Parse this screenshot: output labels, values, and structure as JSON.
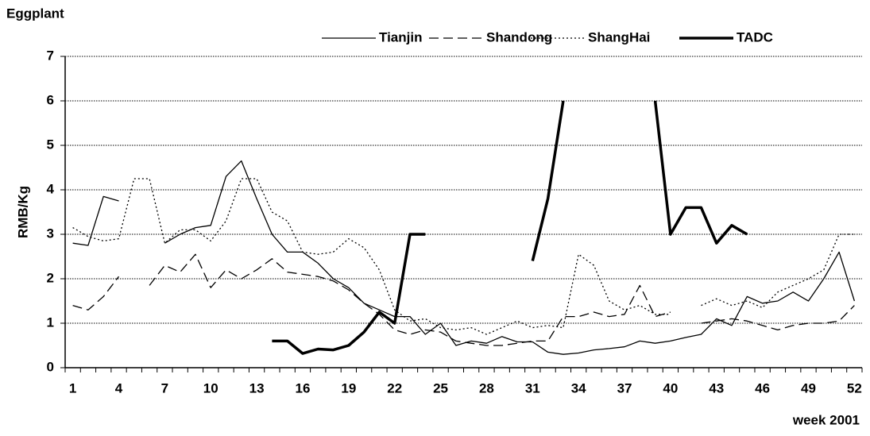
{
  "chart_data": {
    "type": "line",
    "title": "Eggplant",
    "ylabel": "RMB/Kg",
    "xlabel": "week 2001",
    "categories": [
      1,
      null,
      null,
      4,
      null,
      null,
      7,
      null,
      null,
      10,
      null,
      null,
      13,
      null,
      null,
      16,
      null,
      null,
      19,
      null,
      null,
      22,
      null,
      null,
      25,
      null,
      null,
      28,
      null,
      null,
      31,
      null,
      null,
      34,
      null,
      null,
      37,
      null,
      null,
      40,
      null,
      null,
      43,
      null,
      null,
      46,
      null,
      null,
      49,
      null,
      null,
      52
    ],
    "ylim": [
      0,
      7
    ],
    "yticks": [
      0,
      1,
      2,
      3,
      4,
      5,
      6,
      7
    ],
    "grid": true,
    "legend": "top right",
    "series": [
      {
        "name": "Tianjin",
        "color": "#000000",
        "width": 1.3,
        "dash": "none",
        "values": [
          2.8,
          2.75,
          3.85,
          3.75,
          null,
          null,
          2.8,
          3.0,
          3.15,
          3.2,
          4.3,
          4.65,
          3.8,
          3.0,
          2.6,
          2.6,
          2.35,
          2.0,
          1.8,
          1.45,
          1.3,
          1.15,
          1.15,
          0.75,
          1.0,
          0.5,
          0.6,
          0.55,
          0.7,
          0.58,
          0.58,
          0.35,
          0.3,
          0.33,
          0.4,
          0.43,
          0.47,
          0.6,
          0.55,
          0.6,
          0.68,
          0.75,
          1.1,
          0.95,
          1.6,
          1.45,
          1.5,
          1.7,
          1.5,
          2.0,
          2.6,
          1.5
        ]
      },
      {
        "name": "Shandong",
        "color": "#000000",
        "width": 1.3,
        "dash": "12 6",
        "values": [
          1.4,
          1.3,
          1.6,
          2.05,
          null,
          1.85,
          2.3,
          2.15,
          2.55,
          1.8,
          2.2,
          2.0,
          2.2,
          2.45,
          2.15,
          2.1,
          2.05,
          1.95,
          1.75,
          1.45,
          1.2,
          0.85,
          0.75,
          0.85,
          0.8,
          0.6,
          0.55,
          0.5,
          0.5,
          0.55,
          0.6,
          0.6,
          1.15,
          1.15,
          1.25,
          1.15,
          1.2,
          1.85,
          1.15,
          1.25,
          null,
          1.0,
          1.05,
          1.1,
          1.05,
          0.95,
          0.85,
          0.95,
          1.0,
          1.0,
          1.05,
          1.4
        ]
      },
      {
        "name": "ShangHai",
        "color": "#000000",
        "width": 1.3,
        "dash": "2 3",
        "values": [
          3.15,
          2.95,
          2.85,
          2.9,
          4.25,
          4.25,
          2.8,
          3.1,
          3.1,
          2.85,
          3.3,
          4.25,
          4.25,
          3.5,
          3.3,
          2.6,
          2.55,
          2.6,
          2.9,
          2.7,
          2.2,
          1.3,
          1.05,
          1.1,
          0.9,
          0.85,
          0.9,
          0.75,
          0.9,
          1.05,
          0.9,
          0.95,
          0.9,
          2.55,
          2.3,
          1.5,
          1.3,
          1.4,
          1.2,
          1.2,
          null,
          1.4,
          1.55,
          1.4,
          1.5,
          1.35,
          1.7,
          1.85,
          2.0,
          2.2,
          3.0,
          3.0
        ]
      },
      {
        "name": "TADC",
        "color": "#000000",
        "width": 3.5,
        "dash": "none",
        "values": [
          null,
          null,
          null,
          null,
          null,
          null,
          null,
          null,
          null,
          null,
          null,
          null,
          null,
          0.6,
          0.6,
          0.32,
          0.42,
          0.4,
          0.5,
          0.8,
          1.25,
          1.0,
          3.0,
          3.0,
          null,
          null,
          null,
          null,
          null,
          null,
          2.4,
          3.8,
          6.0,
          null,
          null,
          null,
          null,
          null,
          6.0,
          3.0,
          3.6,
          3.6,
          2.8,
          3.2,
          3.0,
          null,
          null,
          null,
          null,
          null,
          null,
          null
        ]
      }
    ]
  }
}
